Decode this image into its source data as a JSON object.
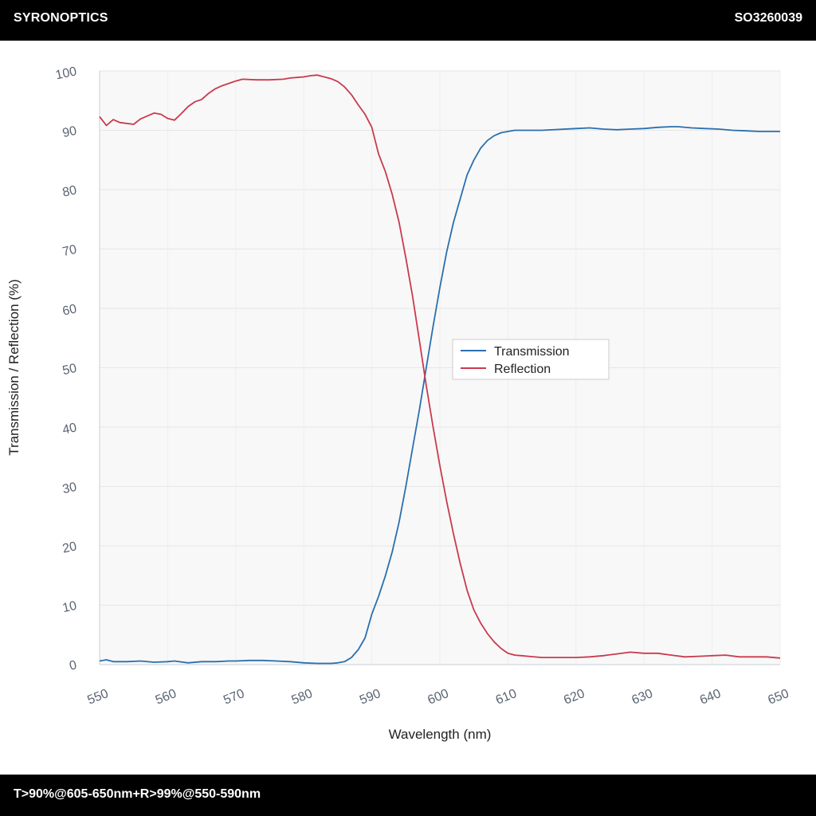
{
  "header": {
    "brand": "SYRONOPTICS",
    "code": "SO3260039"
  },
  "footer": {
    "spec": "T>90%@605-650nm+R>99%@550-590nm"
  },
  "chart_data": {
    "type": "line",
    "xlabel": "Wavelength (nm)",
    "ylabel": "Transmission / Reflection (%)",
    "xlim": [
      550,
      650
    ],
    "ylim": [
      0,
      100
    ],
    "x_ticks": [
      550,
      560,
      570,
      580,
      590,
      600,
      610,
      620,
      630,
      640,
      650
    ],
    "y_ticks": [
      0,
      10,
      20,
      30,
      40,
      50,
      60,
      70,
      80,
      90,
      100
    ],
    "grid": true,
    "legend_position": "center-right",
    "series": [
      {
        "name": "Transmission",
        "color": "#2a6fae",
        "x": [
          550,
          551,
          552,
          554,
          556,
          558,
          560,
          561,
          563,
          565,
          567,
          569,
          570,
          572,
          574,
          576,
          578,
          580,
          582,
          584,
          585,
          586,
          587,
          588,
          589,
          590,
          591,
          592,
          593,
          594,
          595,
          596,
          597,
          598,
          599,
          600,
          601,
          602,
          603,
          604,
          605,
          606,
          607,
          608,
          609,
          610,
          611,
          612,
          615,
          620,
          622,
          624,
          626,
          628,
          630,
          632,
          634,
          635,
          637,
          639,
          641,
          643,
          645,
          647,
          650
        ],
        "y": [
          0.6,
          0.8,
          0.5,
          0.5,
          0.6,
          0.4,
          0.5,
          0.6,
          0.3,
          0.5,
          0.5,
          0.6,
          0.6,
          0.7,
          0.7,
          0.6,
          0.5,
          0.3,
          0.2,
          0.2,
          0.3,
          0.5,
          1.2,
          2.5,
          4.5,
          8.5,
          11.5,
          15,
          19,
          24,
          30,
          36.5,
          43,
          50,
          57,
          63.5,
          69.5,
          74.5,
          78.5,
          82.5,
          85,
          87,
          88.3,
          89.1,
          89.6,
          89.8,
          90.0,
          90.0,
          90.0,
          90.3,
          90.4,
          90.2,
          90.1,
          90.2,
          90.3,
          90.5,
          90.6,
          90.6,
          90.4,
          90.3,
          90.2,
          90.0,
          89.9,
          89.8,
          89.8
        ]
      },
      {
        "name": "Reflection",
        "color": "#c93a4e",
        "x": [
          550,
          551,
          552,
          553,
          555,
          556,
          557,
          558,
          559,
          560,
          561,
          562,
          563,
          564,
          565,
          566,
          567,
          568,
          569,
          570,
          571,
          573,
          575,
          577,
          578,
          579,
          580,
          581,
          582,
          583,
          584,
          585,
          586,
          587,
          588,
          589,
          590,
          591,
          592,
          593,
          594,
          595,
          596,
          597,
          598,
          599,
          600,
          601,
          602,
          603,
          604,
          605,
          606,
          607,
          608,
          609,
          610,
          611,
          612,
          613,
          615,
          617,
          620,
          622,
          624,
          626,
          628,
          630,
          632,
          634,
          636,
          638,
          640,
          642,
          644,
          646,
          648,
          650
        ],
        "y": [
          92.3,
          90.8,
          91.8,
          91.3,
          91.0,
          91.9,
          92.4,
          92.9,
          92.7,
          92.0,
          91.7,
          92.8,
          94.0,
          94.8,
          95.2,
          96.2,
          97.0,
          97.5,
          97.9,
          98.3,
          98.6,
          98.5,
          98.5,
          98.6,
          98.8,
          98.9,
          99.0,
          99.2,
          99.3,
          99.0,
          98.7,
          98.2,
          97.3,
          96.0,
          94.3,
          92.7,
          90.5,
          86.0,
          83.0,
          79.2,
          74.5,
          68.5,
          62.0,
          54.5,
          47.0,
          40.0,
          33.5,
          27.5,
          22.0,
          17.0,
          12.5,
          9.2,
          7.0,
          5.2,
          3.8,
          2.7,
          1.9,
          1.6,
          1.5,
          1.4,
          1.2,
          1.2,
          1.2,
          1.3,
          1.5,
          1.8,
          2.1,
          1.9,
          1.9,
          1.6,
          1.3,
          1.4,
          1.5,
          1.6,
          1.3,
          1.3,
          1.3,
          1.1
        ]
      }
    ]
  }
}
